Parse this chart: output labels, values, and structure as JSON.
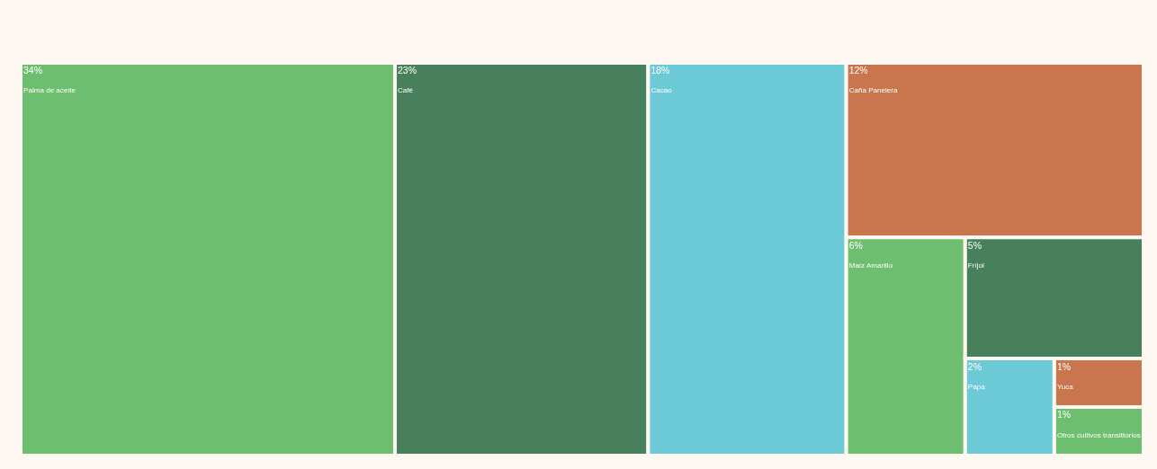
{
  "chart_data": {
    "type": "other",
    "categories": [
      "Palma de aceite",
      "Café",
      "Cacao",
      "Caña Panelera",
      "Maíz Amarillo",
      "Fríjol",
      "Papa",
      "Yuca",
      "Otros cultivos transittorios"
    ],
    "values": [
      34,
      23,
      18,
      12,
      6,
      5,
      2,
      1,
      1
    ],
    "value_labels": [
      "34%",
      "23%",
      "18%",
      "12%",
      "6%",
      "5%",
      "2%",
      "1%",
      "1%"
    ],
    "colors": [
      "#6dbe6e",
      "#47805a",
      "#6ccad6",
      "#c9754d",
      "#6dbe6e",
      "#47805a",
      "#6ccad6",
      "#c9754d",
      "#6dbe6e"
    ]
  }
}
